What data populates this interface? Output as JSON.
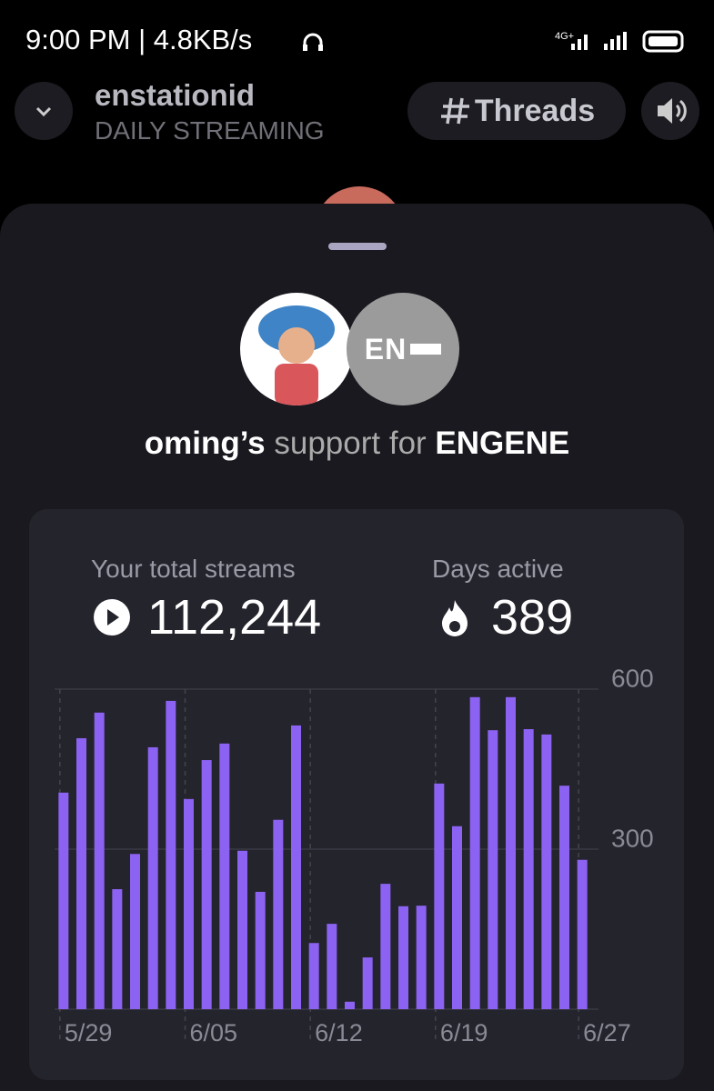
{
  "status_bar": {
    "time": "9:00 PM",
    "speed": "4.8KB/s",
    "network": "4G+"
  },
  "header": {
    "title": "enstationid",
    "subtitle": "DAILY STREAMING",
    "button": "Threads"
  },
  "sheet": {
    "name": "oming’s",
    "middle": "support for",
    "artist": "ENGENE",
    "logo": "EN"
  },
  "stats": [
    {
      "label": "Your total streams",
      "value": "112,244"
    },
    {
      "label": "Days active",
      "value": "389"
    }
  ],
  "chart_data": {
    "type": "bar",
    "color": "#8c62f2",
    "categories": [
      "5/29",
      null,
      null,
      null,
      null,
      null,
      null,
      "6/05",
      null,
      null,
      null,
      null,
      null,
      null,
      "6/12",
      null,
      null,
      null,
      null,
      null,
      null,
      "6/19",
      null,
      null,
      null,
      null,
      null,
      null,
      null,
      "6/27"
    ],
    "values": [
      406,
      508,
      556,
      225,
      291,
      491,
      578,
      394,
      467,
      498,
      297,
      220,
      355,
      532,
      124,
      160,
      14,
      97,
      235,
      193,
      194,
      423,
      343,
      585,
      523,
      585,
      525,
      515,
      419,
      280
    ],
    "ylim": [
      0,
      600
    ],
    "yticks": [
      300,
      600
    ],
    "grid": true
  }
}
